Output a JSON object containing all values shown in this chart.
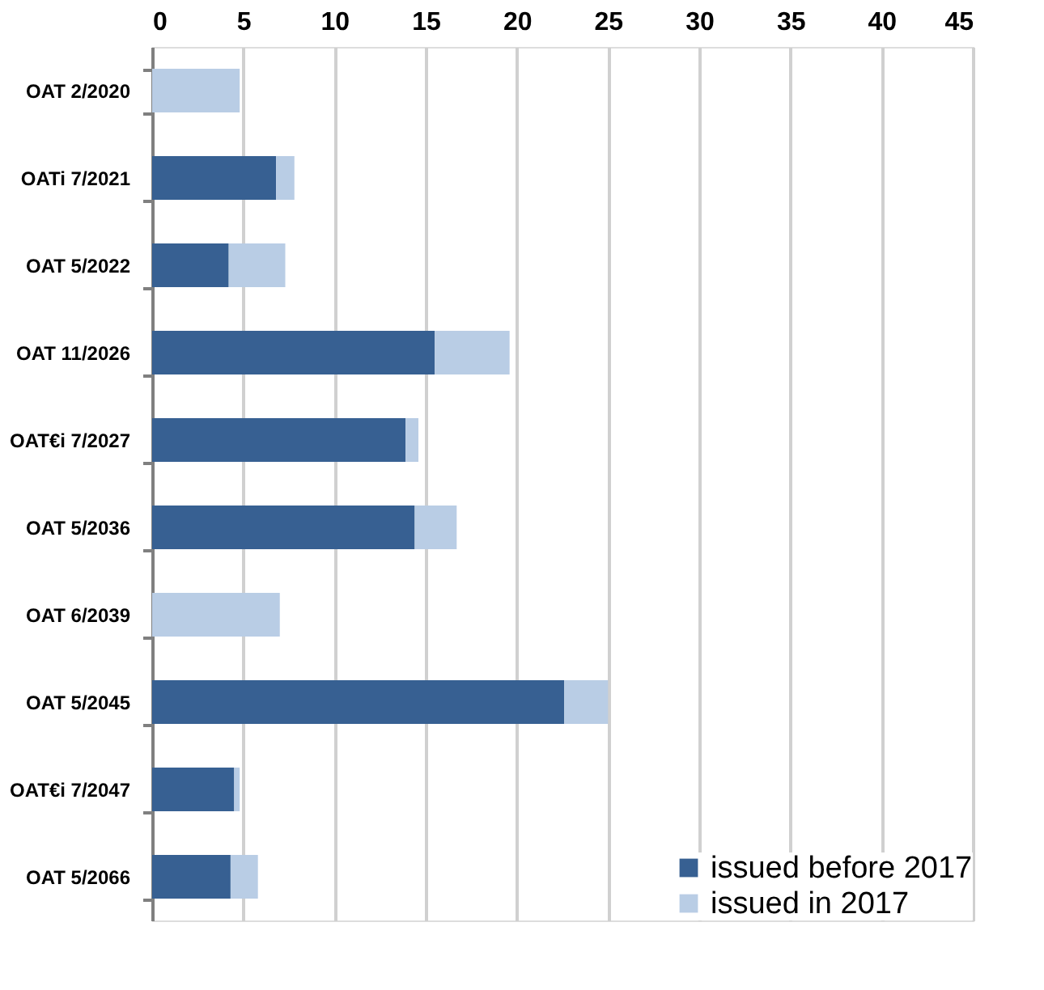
{
  "chart_data": {
    "type": "bar",
    "orientation": "horizontal",
    "stacked": true,
    "categories": [
      "OAT 2/2020",
      "OATi 7/2021",
      "OAT 5/2022",
      "OAT 11/2026",
      "OAT€i 7/2027",
      "OAT 5/2036",
      "OAT 6/2039",
      "OAT 5/2045",
      "OAT€i 7/2047",
      "OAT 5/2066"
    ],
    "series": [
      {
        "name": "issued before 2017",
        "color": "#376092",
        "values": [
          0,
          6.8,
          4.2,
          15.5,
          13.9,
          14.4,
          0,
          22.6,
          4.5,
          4.3
        ]
      },
      {
        "name": "issued in 2017",
        "color": "#b9cde5",
        "values": [
          4.8,
          1.0,
          3.1,
          4.1,
          0.7,
          2.3,
          7.0,
          2.4,
          0.3,
          1.5
        ]
      }
    ],
    "xlim": [
      0,
      45
    ],
    "xticks": [
      0,
      5,
      10,
      15,
      20,
      25,
      30,
      35,
      40,
      45
    ],
    "grid": "x",
    "legend": "bottom right"
  }
}
